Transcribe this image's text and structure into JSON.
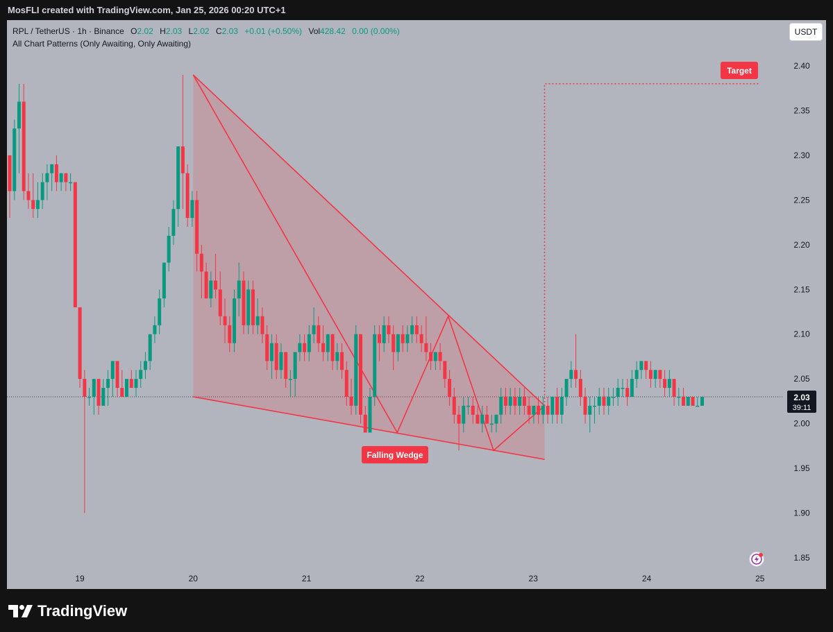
{
  "header": {
    "caption": "MosFLI created with TradingView.com, Jan 25, 2026 00:20 UTC+1"
  },
  "legend": {
    "symbol": "RPL / TetherUS · 1h · Binance",
    "open_label": "O",
    "open": "2.02",
    "high_label": "H",
    "high": "2.03",
    "low_label": "L",
    "low": "2.02",
    "close_label": "C",
    "close": "2.03",
    "change": "+0.01 (+0.50%)",
    "vol_label": "Vol",
    "vol": "428.42",
    "vol_change": "0.00 (0.00%)",
    "indicator": "All Chart Patterns (Only Awaiting, Only Awaiting)"
  },
  "currency_button": "USDT",
  "price_tag": {
    "price": "2.03",
    "countdown": "39:11"
  },
  "logo": {
    "text": "TradingView",
    "icon": "tradingview-logo-icon"
  },
  "icons": {
    "alert": "lightning-alert-icon"
  },
  "colors": {
    "up": "#089981",
    "down": "#f23645",
    "pattern": "#f23645"
  },
  "chart_data": {
    "type": "candlestick",
    "ylim": [
      1.82,
      2.42
    ],
    "y_ticks": [
      "2.40",
      "2.35",
      "2.30",
      "2.25",
      "2.20",
      "2.15",
      "2.10",
      "2.05",
      "2.00",
      "1.95",
      "1.90",
      "1.85"
    ],
    "x_ticks": [
      "19",
      "20",
      "21",
      "22",
      "23",
      "24",
      "25"
    ],
    "grid": false,
    "current_price": 2.03,
    "candles": [
      [
        2.3,
        2.3,
        2.23,
        2.26
      ],
      [
        2.26,
        2.34,
        2.25,
        2.33
      ],
      [
        2.33,
        2.38,
        2.28,
        2.36
      ],
      [
        2.36,
        2.38,
        2.25,
        2.26
      ],
      [
        2.26,
        2.28,
        2.24,
        2.25
      ],
      [
        2.25,
        2.28,
        2.23,
        2.24
      ],
      [
        2.24,
        2.27,
        2.23,
        2.25
      ],
      [
        2.25,
        2.28,
        2.24,
        2.27
      ],
      [
        2.27,
        2.29,
        2.25,
        2.28
      ],
      [
        2.28,
        2.29,
        2.26,
        2.29
      ],
      [
        2.29,
        2.3,
        2.26,
        2.27
      ],
      [
        2.27,
        2.28,
        2.26,
        2.28
      ],
      [
        2.28,
        2.28,
        2.26,
        2.27
      ],
      [
        2.27,
        2.28,
        2.26,
        2.27
      ],
      [
        2.27,
        2.27,
        2.13,
        2.13
      ],
      [
        2.13,
        2.13,
        2.04,
        2.05
      ],
      [
        2.05,
        2.06,
        1.9,
        2.03
      ],
      [
        2.03,
        2.04,
        2.02,
        2.03
      ],
      [
        2.03,
        2.05,
        2.01,
        2.05
      ],
      [
        2.05,
        2.05,
        2.01,
        2.02
      ],
      [
        2.02,
        2.05,
        2.02,
        2.04
      ],
      [
        2.04,
        2.06,
        2.02,
        2.05
      ],
      [
        2.05,
        2.07,
        2.03,
        2.07
      ],
      [
        2.07,
        2.07,
        2.03,
        2.04
      ],
      [
        2.04,
        2.06,
        2.03,
        2.03
      ],
      [
        2.03,
        2.05,
        2.03,
        2.05
      ],
      [
        2.05,
        2.06,
        2.04,
        2.04
      ],
      [
        2.04,
        2.06,
        2.03,
        2.05
      ],
      [
        2.05,
        2.07,
        2.04,
        2.06
      ],
      [
        2.06,
        2.08,
        2.05,
        2.07
      ],
      [
        2.07,
        2.1,
        2.06,
        2.1
      ],
      [
        2.1,
        2.12,
        2.09,
        2.11
      ],
      [
        2.11,
        2.15,
        2.1,
        2.14
      ],
      [
        2.14,
        2.18,
        2.13,
        2.18
      ],
      [
        2.18,
        2.22,
        2.17,
        2.21
      ],
      [
        2.21,
        2.25,
        2.2,
        2.24
      ],
      [
        2.24,
        2.31,
        2.22,
        2.31
      ],
      [
        2.31,
        2.39,
        2.24,
        2.28
      ],
      [
        2.28,
        2.29,
        2.22,
        2.23
      ],
      [
        2.23,
        2.26,
        2.22,
        2.25
      ],
      [
        2.25,
        2.26,
        2.17,
        2.19
      ],
      [
        2.19,
        2.2,
        2.14,
        2.17
      ],
      [
        2.17,
        2.18,
        2.14,
        2.14
      ],
      [
        2.14,
        2.17,
        2.13,
        2.16
      ],
      [
        2.16,
        2.19,
        2.14,
        2.15
      ],
      [
        2.15,
        2.17,
        2.11,
        2.12
      ],
      [
        2.12,
        2.14,
        2.09,
        2.11
      ],
      [
        2.11,
        2.12,
        2.08,
        2.09
      ],
      [
        2.09,
        2.15,
        2.08,
        2.14
      ],
      [
        2.14,
        2.18,
        2.12,
        2.16
      ],
      [
        2.16,
        2.17,
        2.1,
        2.11
      ],
      [
        2.11,
        2.16,
        2.1,
        2.15
      ],
      [
        2.15,
        2.16,
        2.1,
        2.11
      ],
      [
        2.11,
        2.14,
        2.1,
        2.12
      ],
      [
        2.12,
        2.13,
        2.09,
        2.1
      ],
      [
        2.1,
        2.11,
        2.06,
        2.07
      ],
      [
        2.07,
        2.1,
        2.05,
        2.09
      ],
      [
        2.09,
        2.1,
        2.05,
        2.06
      ],
      [
        2.06,
        2.09,
        2.05,
        2.08
      ],
      [
        2.08,
        2.08,
        2.04,
        2.05
      ],
      [
        2.05,
        2.06,
        2.03,
        2.05
      ],
      [
        2.05,
        2.08,
        2.03,
        2.08
      ],
      [
        2.08,
        2.1,
        2.07,
        2.09
      ],
      [
        2.09,
        2.1,
        2.07,
        2.08
      ],
      [
        2.08,
        2.11,
        2.07,
        2.1
      ],
      [
        2.1,
        2.13,
        2.09,
        2.11
      ],
      [
        2.11,
        2.12,
        2.08,
        2.09
      ],
      [
        2.09,
        2.11,
        2.07,
        2.08
      ],
      [
        2.08,
        2.1,
        2.07,
        2.1
      ],
      [
        2.1,
        2.1,
        2.06,
        2.07
      ],
      [
        2.07,
        2.09,
        2.06,
        2.08
      ],
      [
        2.08,
        2.09,
        2.05,
        2.06
      ],
      [
        2.06,
        2.07,
        2.02,
        2.03
      ],
      [
        2.03,
        2.05,
        2.01,
        2.02
      ],
      [
        2.02,
        2.11,
        2.01,
        2.1
      ],
      [
        2.1,
        2.1,
        2.0,
        2.01
      ],
      [
        2.01,
        2.02,
        1.99,
        1.99
      ],
      [
        1.99,
        2.04,
        1.99,
        2.03
      ],
      [
        2.03,
        2.11,
        2.02,
        2.1
      ],
      [
        2.1,
        2.11,
        2.07,
        2.09
      ],
      [
        2.09,
        2.12,
        2.08,
        2.11
      ],
      [
        2.11,
        2.12,
        2.09,
        2.1
      ],
      [
        2.1,
        2.11,
        2.06,
        2.08
      ],
      [
        2.08,
        2.1,
        2.07,
        2.1
      ],
      [
        2.1,
        2.11,
        2.08,
        2.09
      ],
      [
        2.09,
        2.11,
        2.08,
        2.1
      ],
      [
        2.1,
        2.12,
        2.09,
        2.11
      ],
      [
        2.11,
        2.12,
        2.09,
        2.1
      ],
      [
        2.1,
        2.11,
        2.08,
        2.09
      ],
      [
        2.09,
        2.12,
        2.07,
        2.08
      ],
      [
        2.08,
        2.09,
        2.06,
        2.07
      ],
      [
        2.07,
        2.08,
        2.06,
        2.08
      ],
      [
        2.08,
        2.09,
        2.06,
        2.07
      ],
      [
        2.07,
        2.07,
        2.04,
        2.05
      ],
      [
        2.05,
        2.06,
        2.02,
        2.03
      ],
      [
        2.03,
        2.04,
        2.0,
        2.01
      ],
      [
        2.01,
        2.02,
        1.97,
        2.0
      ],
      [
        2.0,
        2.03,
        1.99,
        2.02
      ],
      [
        2.02,
        2.03,
        2.01,
        2.02
      ],
      [
        2.02,
        2.03,
        2.0,
        2.01
      ],
      [
        2.01,
        2.02,
        2.0,
        2.0
      ],
      [
        2.0,
        2.02,
        1.99,
        2.01
      ],
      [
        2.01,
        2.02,
        2.0,
        2.0
      ],
      [
        2.0,
        2.01,
        1.99,
        2.0
      ],
      [
        2.0,
        2.01,
        1.99,
        2.01
      ],
      [
        2.01,
        2.04,
        2.0,
        2.03
      ],
      [
        2.03,
        2.04,
        2.01,
        2.02
      ],
      [
        2.02,
        2.04,
        2.01,
        2.03
      ],
      [
        2.03,
        2.04,
        2.01,
        2.02
      ],
      [
        2.02,
        2.04,
        2.01,
        2.03
      ],
      [
        2.03,
        2.04,
        2.01,
        2.02
      ],
      [
        2.02,
        2.03,
        2.0,
        2.01
      ],
      [
        2.01,
        2.02,
        2.0,
        2.02
      ],
      [
        2.02,
        2.03,
        2.0,
        2.01
      ],
      [
        2.01,
        2.03,
        2.0,
        2.02
      ],
      [
        2.02,
        2.03,
        2.0,
        2.01
      ],
      [
        2.01,
        2.03,
        2.0,
        2.03
      ],
      [
        2.03,
        2.04,
        2.0,
        2.01
      ],
      [
        2.01,
        2.04,
        2.0,
        2.03
      ],
      [
        2.03,
        2.05,
        2.02,
        2.05
      ],
      [
        2.05,
        2.07,
        2.04,
        2.06
      ],
      [
        2.06,
        2.1,
        2.04,
        2.05
      ],
      [
        2.05,
        2.06,
        2.02,
        2.03
      ],
      [
        2.03,
        2.04,
        2.0,
        2.01
      ],
      [
        2.01,
        2.03,
        1.99,
        2.02
      ],
      [
        2.02,
        2.03,
        2.0,
        2.02
      ],
      [
        2.02,
        2.04,
        2.01,
        2.03
      ],
      [
        2.03,
        2.04,
        2.01,
        2.02
      ],
      [
        2.02,
        2.04,
        2.01,
        2.03
      ],
      [
        2.03,
        2.04,
        2.02,
        2.03
      ],
      [
        2.03,
        2.05,
        2.02,
        2.04
      ],
      [
        2.04,
        2.05,
        2.03,
        2.04
      ],
      [
        2.04,
        2.05,
        2.02,
        2.03
      ],
      [
        2.03,
        2.06,
        2.03,
        2.05
      ],
      [
        2.05,
        2.07,
        2.04,
        2.06
      ],
      [
        2.06,
        2.07,
        2.05,
        2.07
      ],
      [
        2.07,
        2.07,
        2.05,
        2.06
      ],
      [
        2.06,
        2.07,
        2.04,
        2.05
      ],
      [
        2.05,
        2.06,
        2.04,
        2.06
      ],
      [
        2.06,
        2.06,
        2.04,
        2.05
      ],
      [
        2.05,
        2.06,
        2.03,
        2.04
      ],
      [
        2.04,
        2.06,
        2.03,
        2.05
      ],
      [
        2.05,
        2.05,
        2.02,
        2.03
      ],
      [
        2.03,
        2.04,
        2.02,
        2.03
      ],
      [
        2.03,
        2.04,
        2.02,
        2.02
      ],
      [
        2.02,
        2.03,
        2.02,
        2.03
      ],
      [
        2.03,
        2.03,
        2.02,
        2.02
      ],
      [
        2.02,
        2.03,
        2.02,
        2.02
      ],
      [
        2.02,
        2.03,
        2.02,
        2.03
      ]
    ],
    "pattern": {
      "label": "Falling Wedge",
      "target_label": "Target",
      "target_price": 2.38,
      "start_day": 20.0,
      "end_day": 23.1,
      "upper_line": [
        [
          20.0,
          2.39
        ],
        [
          23.1,
          2.02
        ]
      ],
      "lower_line": [
        [
          20.0,
          2.03
        ],
        [
          23.1,
          1.96
        ]
      ],
      "zigzag": [
        [
          20.0,
          2.39
        ],
        [
          21.8,
          1.99
        ],
        [
          22.25,
          2.12
        ],
        [
          22.65,
          1.97
        ],
        [
          23.1,
          2.02
        ]
      ],
      "target_line": [
        [
          23.1,
          2.02
        ],
        [
          23.1,
          2.38
        ],
        [
          25.0,
          2.38
        ]
      ]
    }
  }
}
